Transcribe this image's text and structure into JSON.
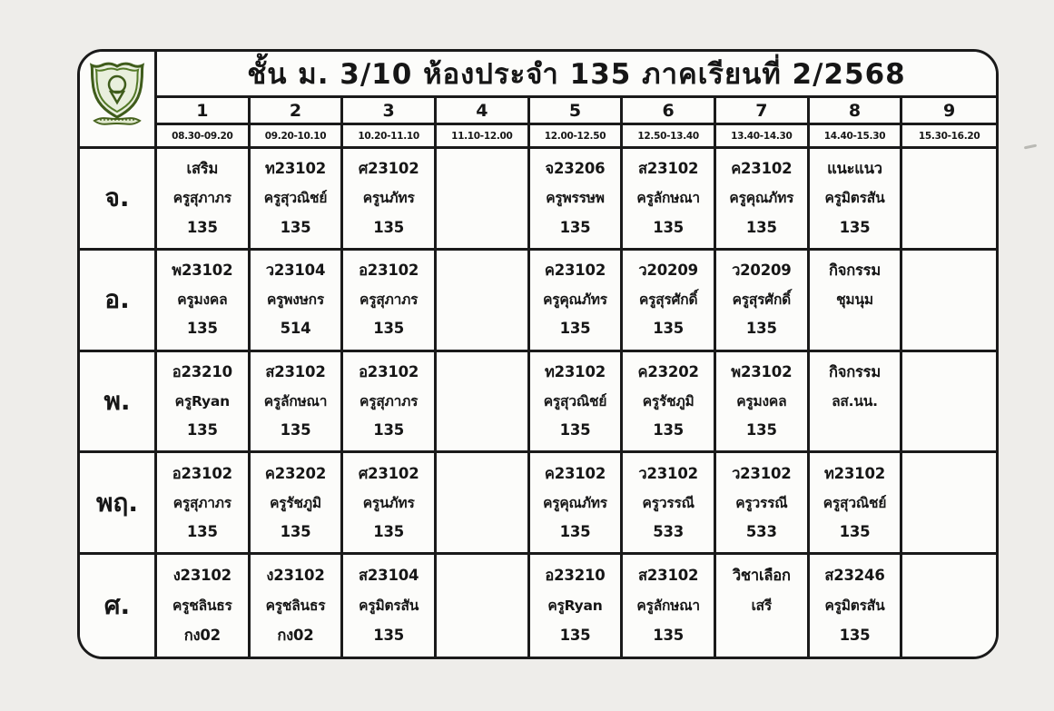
{
  "header": {
    "title": "ชั้น ม. 3/10 ห้องประจำ 135 ภาคเรียนที่ 2/2568",
    "logo": "school-crest",
    "logo_color": "#4a6b1f"
  },
  "periods": [
    {
      "no": "1",
      "time": "08.30-09.20"
    },
    {
      "no": "2",
      "time": "09.20-10.10"
    },
    {
      "no": "3",
      "time": "10.20-11.10"
    },
    {
      "no": "4",
      "time": "11.10-12.00"
    },
    {
      "no": "5",
      "time": "12.00-12.50"
    },
    {
      "no": "6",
      "time": "12.50-13.40"
    },
    {
      "no": "7",
      "time": "13.40-14.30"
    },
    {
      "no": "8",
      "time": "14.40-15.30"
    },
    {
      "no": "9",
      "time": "15.30-16.20"
    }
  ],
  "days": [
    {
      "label": "จ.",
      "slots": [
        {
          "code": "เสริม",
          "teacher": "ครูสุภาภร",
          "room": "135"
        },
        {
          "code": "ท23102",
          "teacher": "ครูสุวณิชย์",
          "room": "135"
        },
        {
          "code": "ศ23102",
          "teacher": "ครูนภัทร",
          "room": "135"
        },
        {
          "code": "",
          "teacher": "",
          "room": ""
        },
        {
          "code": "จ23206",
          "teacher": "ครูพรรษพ",
          "room": "135"
        },
        {
          "code": "ส23102",
          "teacher": "ครูลักษณา",
          "room": "135"
        },
        {
          "code": "ค23102",
          "teacher": "ครูคุณภัทร",
          "room": "135"
        },
        {
          "code": "แนะแนว",
          "teacher": "ครูมิตรสัน",
          "room": "135"
        },
        {
          "code": "",
          "teacher": "",
          "room": ""
        }
      ]
    },
    {
      "label": "อ.",
      "slots": [
        {
          "code": "พ23102",
          "teacher": "ครูมงคล",
          "room": "135"
        },
        {
          "code": "ว23104",
          "teacher": "ครูพงษกร",
          "room": "514"
        },
        {
          "code": "อ23102",
          "teacher": "ครูสุภาภร",
          "room": "135"
        },
        {
          "code": "",
          "teacher": "",
          "room": ""
        },
        {
          "code": "ค23102",
          "teacher": "ครูคุณภัทร",
          "room": "135"
        },
        {
          "code": "ว20209",
          "teacher": "ครูสุรศักดิ์",
          "room": "135"
        },
        {
          "code": "ว20209",
          "teacher": "ครูสุรศักดิ์",
          "room": "135"
        },
        {
          "code": "กิจกรรม",
          "teacher": "ชุมนุม",
          "room": ""
        },
        {
          "code": "",
          "teacher": "",
          "room": ""
        }
      ]
    },
    {
      "label": "พ.",
      "slots": [
        {
          "code": "อ23210",
          "teacher": "ครูRyan",
          "room": "135"
        },
        {
          "code": "ส23102",
          "teacher": "ครูลักษณา",
          "room": "135"
        },
        {
          "code": "อ23102",
          "teacher": "ครูสุภาภร",
          "room": "135"
        },
        {
          "code": "",
          "teacher": "",
          "room": ""
        },
        {
          "code": "ท23102",
          "teacher": "ครูสุวณิชย์",
          "room": "135"
        },
        {
          "code": "ค23202",
          "teacher": "ครูรัชภูมิ",
          "room": "135"
        },
        {
          "code": "พ23102",
          "teacher": "ครูมงคล",
          "room": "135"
        },
        {
          "code": "กิจกรรม",
          "teacher": "ลส.นน.",
          "room": ""
        },
        {
          "code": "",
          "teacher": "",
          "room": ""
        }
      ]
    },
    {
      "label": "พฤ.",
      "slots": [
        {
          "code": "อ23102",
          "teacher": "ครูสุภาภร",
          "room": "135"
        },
        {
          "code": "ค23202",
          "teacher": "ครูรัชภูมิ",
          "room": "135"
        },
        {
          "code": "ศ23102",
          "teacher": "ครูนภัทร",
          "room": "135"
        },
        {
          "code": "",
          "teacher": "",
          "room": ""
        },
        {
          "code": "ค23102",
          "teacher": "ครูคุณภัทร",
          "room": "135"
        },
        {
          "code": "ว23102",
          "teacher": "ครูวรรณี",
          "room": "533"
        },
        {
          "code": "ว23102",
          "teacher": "ครูวรรณี",
          "room": "533"
        },
        {
          "code": "ท23102",
          "teacher": "ครูสุวณิชย์",
          "room": "135"
        },
        {
          "code": "",
          "teacher": "",
          "room": ""
        }
      ]
    },
    {
      "label": "ศ.",
      "slots": [
        {
          "code": "ง23102",
          "teacher": "ครูชลินธร",
          "room": "กง02"
        },
        {
          "code": "ง23102",
          "teacher": "ครูชลินธร",
          "room": "กง02"
        },
        {
          "code": "ส23104",
          "teacher": "ครูมิตรสัน",
          "room": "135"
        },
        {
          "code": "",
          "teacher": "",
          "room": ""
        },
        {
          "code": "อ23210",
          "teacher": "ครูRyan",
          "room": "135"
        },
        {
          "code": "ส23102",
          "teacher": "ครูลักษณา",
          "room": "135"
        },
        {
          "code": "วิชาเลือก",
          "teacher": "เสรี",
          "room": ""
        },
        {
          "code": "ส23246",
          "teacher": "ครูมิตรสัน",
          "room": "135"
        },
        {
          "code": "",
          "teacher": "",
          "room": ""
        }
      ]
    }
  ]
}
